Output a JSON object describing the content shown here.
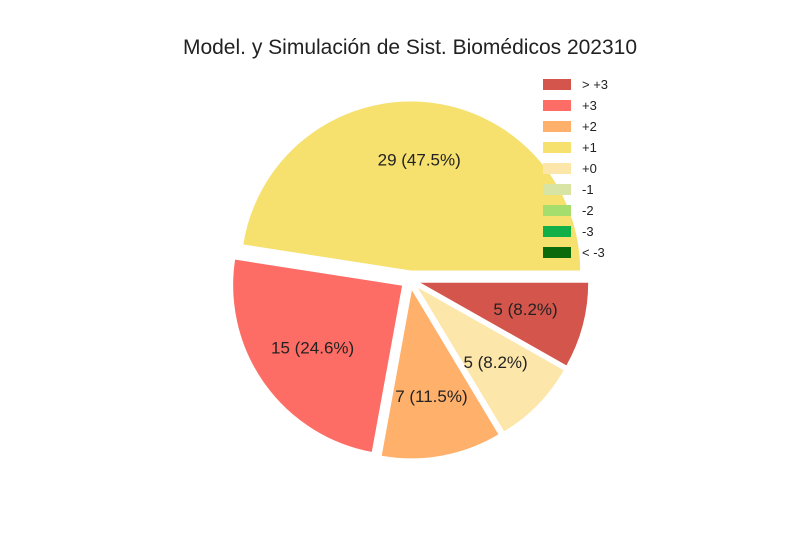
{
  "chart_data": {
    "type": "pie",
    "title": "Model. y Simulación de Sist. Biomédicos 202310",
    "legend_position": "top-right",
    "legend": [
      {
        "label": "> +3",
        "color": "#d4554b"
      },
      {
        "label": "+3",
        "color": "#fe6d65"
      },
      {
        "label": "+2",
        "color": "#ffb06a"
      },
      {
        "label": "+1",
        "color": "#f6e06e"
      },
      {
        "label": "+0",
        "color": "#fde6a9"
      },
      {
        "label": "-1",
        "color": "#d8e4a3"
      },
      {
        "label": "-2",
        "color": "#a6de6e"
      },
      {
        "label": "-3",
        "color": "#10af48"
      },
      {
        "label": "< -3",
        "color": "#0b6a0b"
      }
    ],
    "slices": [
      {
        "category": "> +3",
        "value": 5,
        "label": "5 (8.2%)",
        "color": "#d4554b"
      },
      {
        "category": "+0",
        "value": 5,
        "label": "5 (8.2%)",
        "color": "#fde6a9"
      },
      {
        "category": "+2",
        "value": 7,
        "label": "7 (11.5%)",
        "color": "#ffb06a"
      },
      {
        "category": "+3",
        "value": 15,
        "label": "15 (24.6%)",
        "color": "#fe6d65"
      },
      {
        "category": "+1",
        "value": 29,
        "label": "29 (47.5%)",
        "color": "#f6e06e"
      }
    ]
  }
}
